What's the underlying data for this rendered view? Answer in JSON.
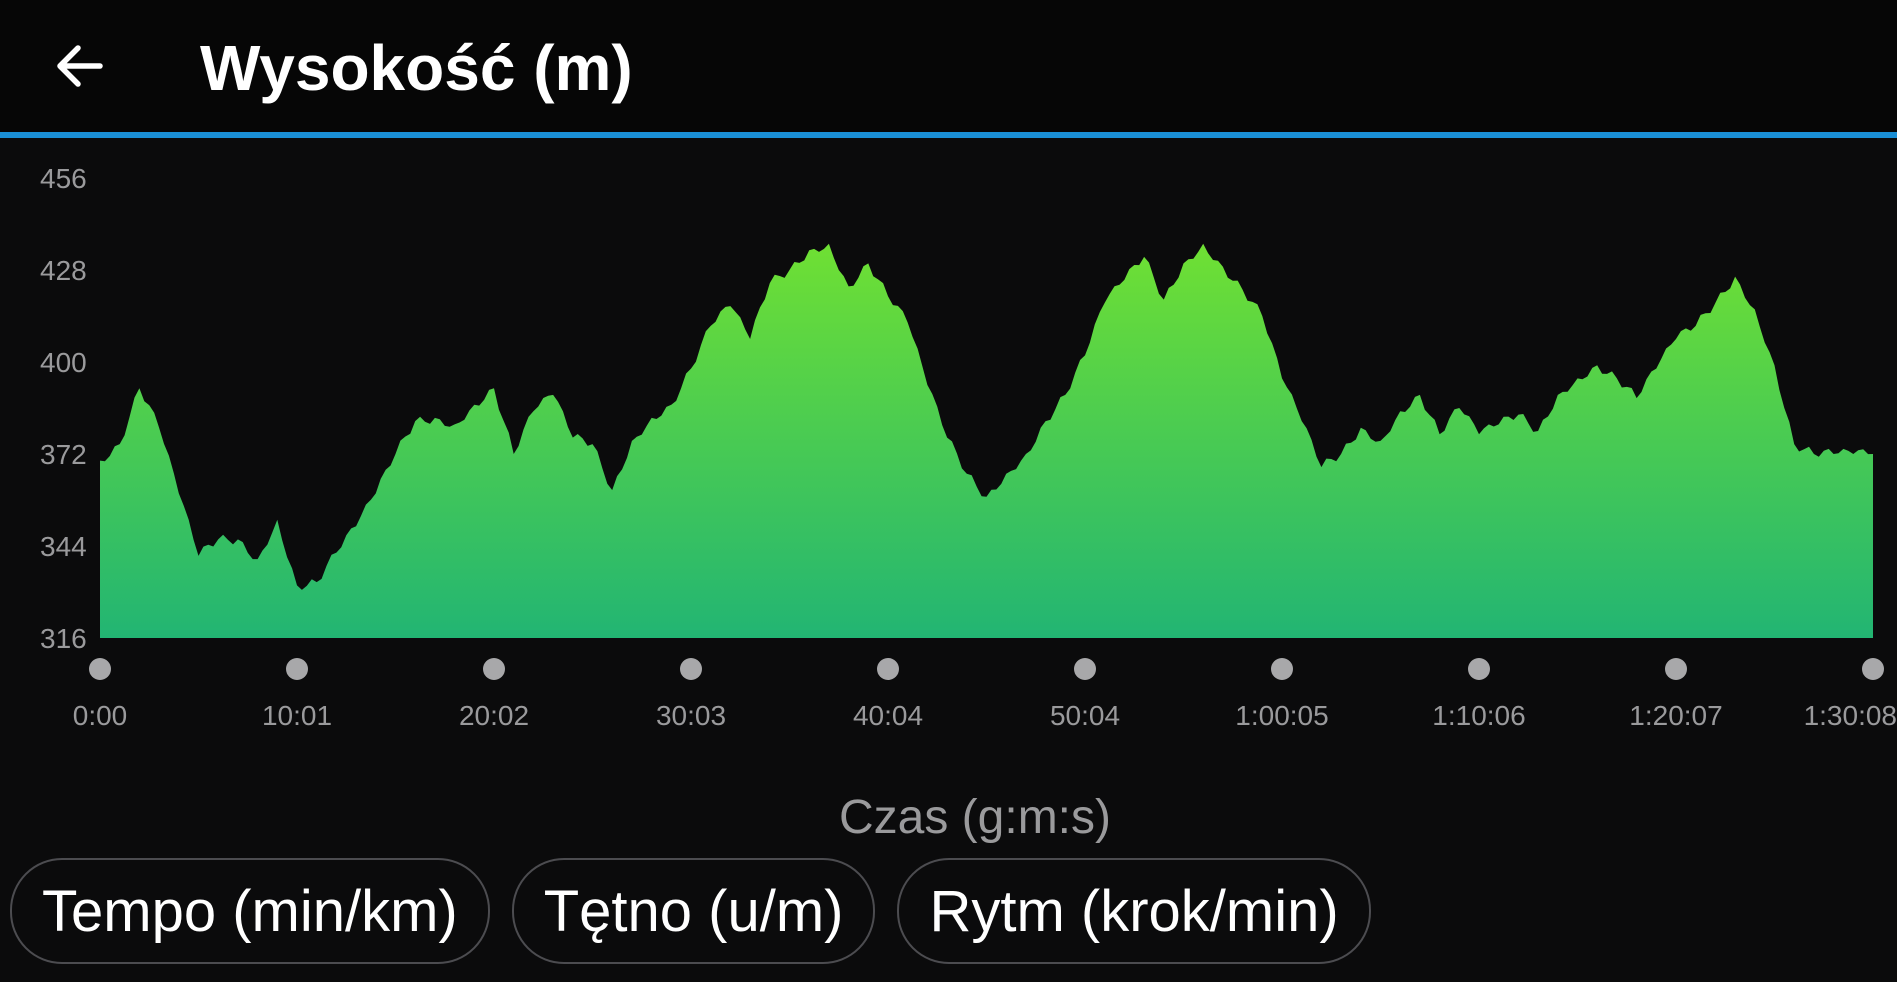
{
  "header": {
    "title": "Wysokość (m)"
  },
  "tabs": [
    {
      "label": "Tempo (min/km)"
    },
    {
      "label": "Tętno (u/m)"
    },
    {
      "label": "Rytm (krok/min)"
    }
  ],
  "colors": {
    "accent_line": "#1a8fd6",
    "fill_top": "#6fe033",
    "fill_bottom": "#22b573",
    "axis_text": "#9a9a9c"
  },
  "chart_data": {
    "type": "area",
    "title": "Wysokość (m)",
    "xlabel": "Czas (g:m:s)",
    "ylabel": "",
    "ylim": [
      316,
      456
    ],
    "yticks": [
      316,
      344,
      372,
      400,
      428,
      456
    ],
    "xticks": [
      "0:00",
      "10:01",
      "20:02",
      "30:03",
      "40:04",
      "50:04",
      "1:00:05",
      "1:10:06",
      "1:20:07",
      "1:30:08"
    ],
    "x_minutes": [
      0,
      1,
      2,
      3,
      4,
      5,
      6,
      7,
      8,
      9,
      10,
      11,
      12,
      13,
      14,
      15,
      16,
      17,
      18,
      19,
      20,
      21,
      22,
      23,
      24,
      25,
      26,
      27,
      28,
      29,
      30,
      31,
      32,
      33,
      34,
      35,
      36,
      37,
      38,
      39,
      40,
      41,
      42,
      43,
      44,
      45,
      46,
      47,
      48,
      49,
      50,
      51,
      52,
      53,
      54,
      55,
      56,
      57,
      58,
      59,
      60,
      61,
      62,
      63,
      64,
      65,
      66,
      67,
      68,
      69,
      70,
      71,
      72,
      73,
      74,
      75,
      76,
      77,
      78,
      79,
      80,
      81,
      82,
      83,
      84,
      85,
      86,
      87,
      88,
      89,
      90
    ],
    "elevation": [
      370,
      375,
      392,
      380,
      360,
      341,
      346,
      346,
      340,
      352,
      332,
      333,
      342,
      350,
      360,
      372,
      382,
      383,
      381,
      387,
      392,
      372,
      385,
      390,
      377,
      375,
      361,
      376,
      383,
      387,
      398,
      411,
      417,
      407,
      424,
      428,
      434,
      436,
      423,
      430,
      420,
      412,
      393,
      377,
      366,
      359,
      366,
      372,
      382,
      390,
      402,
      418,
      425,
      432,
      419,
      430,
      436,
      429,
      422,
      414,
      395,
      382,
      368,
      372,
      380,
      376,
      385,
      390,
      378,
      386,
      378,
      381,
      384,
      379,
      390,
      395,
      399,
      395,
      389,
      398,
      407,
      411,
      418,
      426,
      416,
      399,
      375,
      372,
      372,
      372,
      372
    ]
  }
}
